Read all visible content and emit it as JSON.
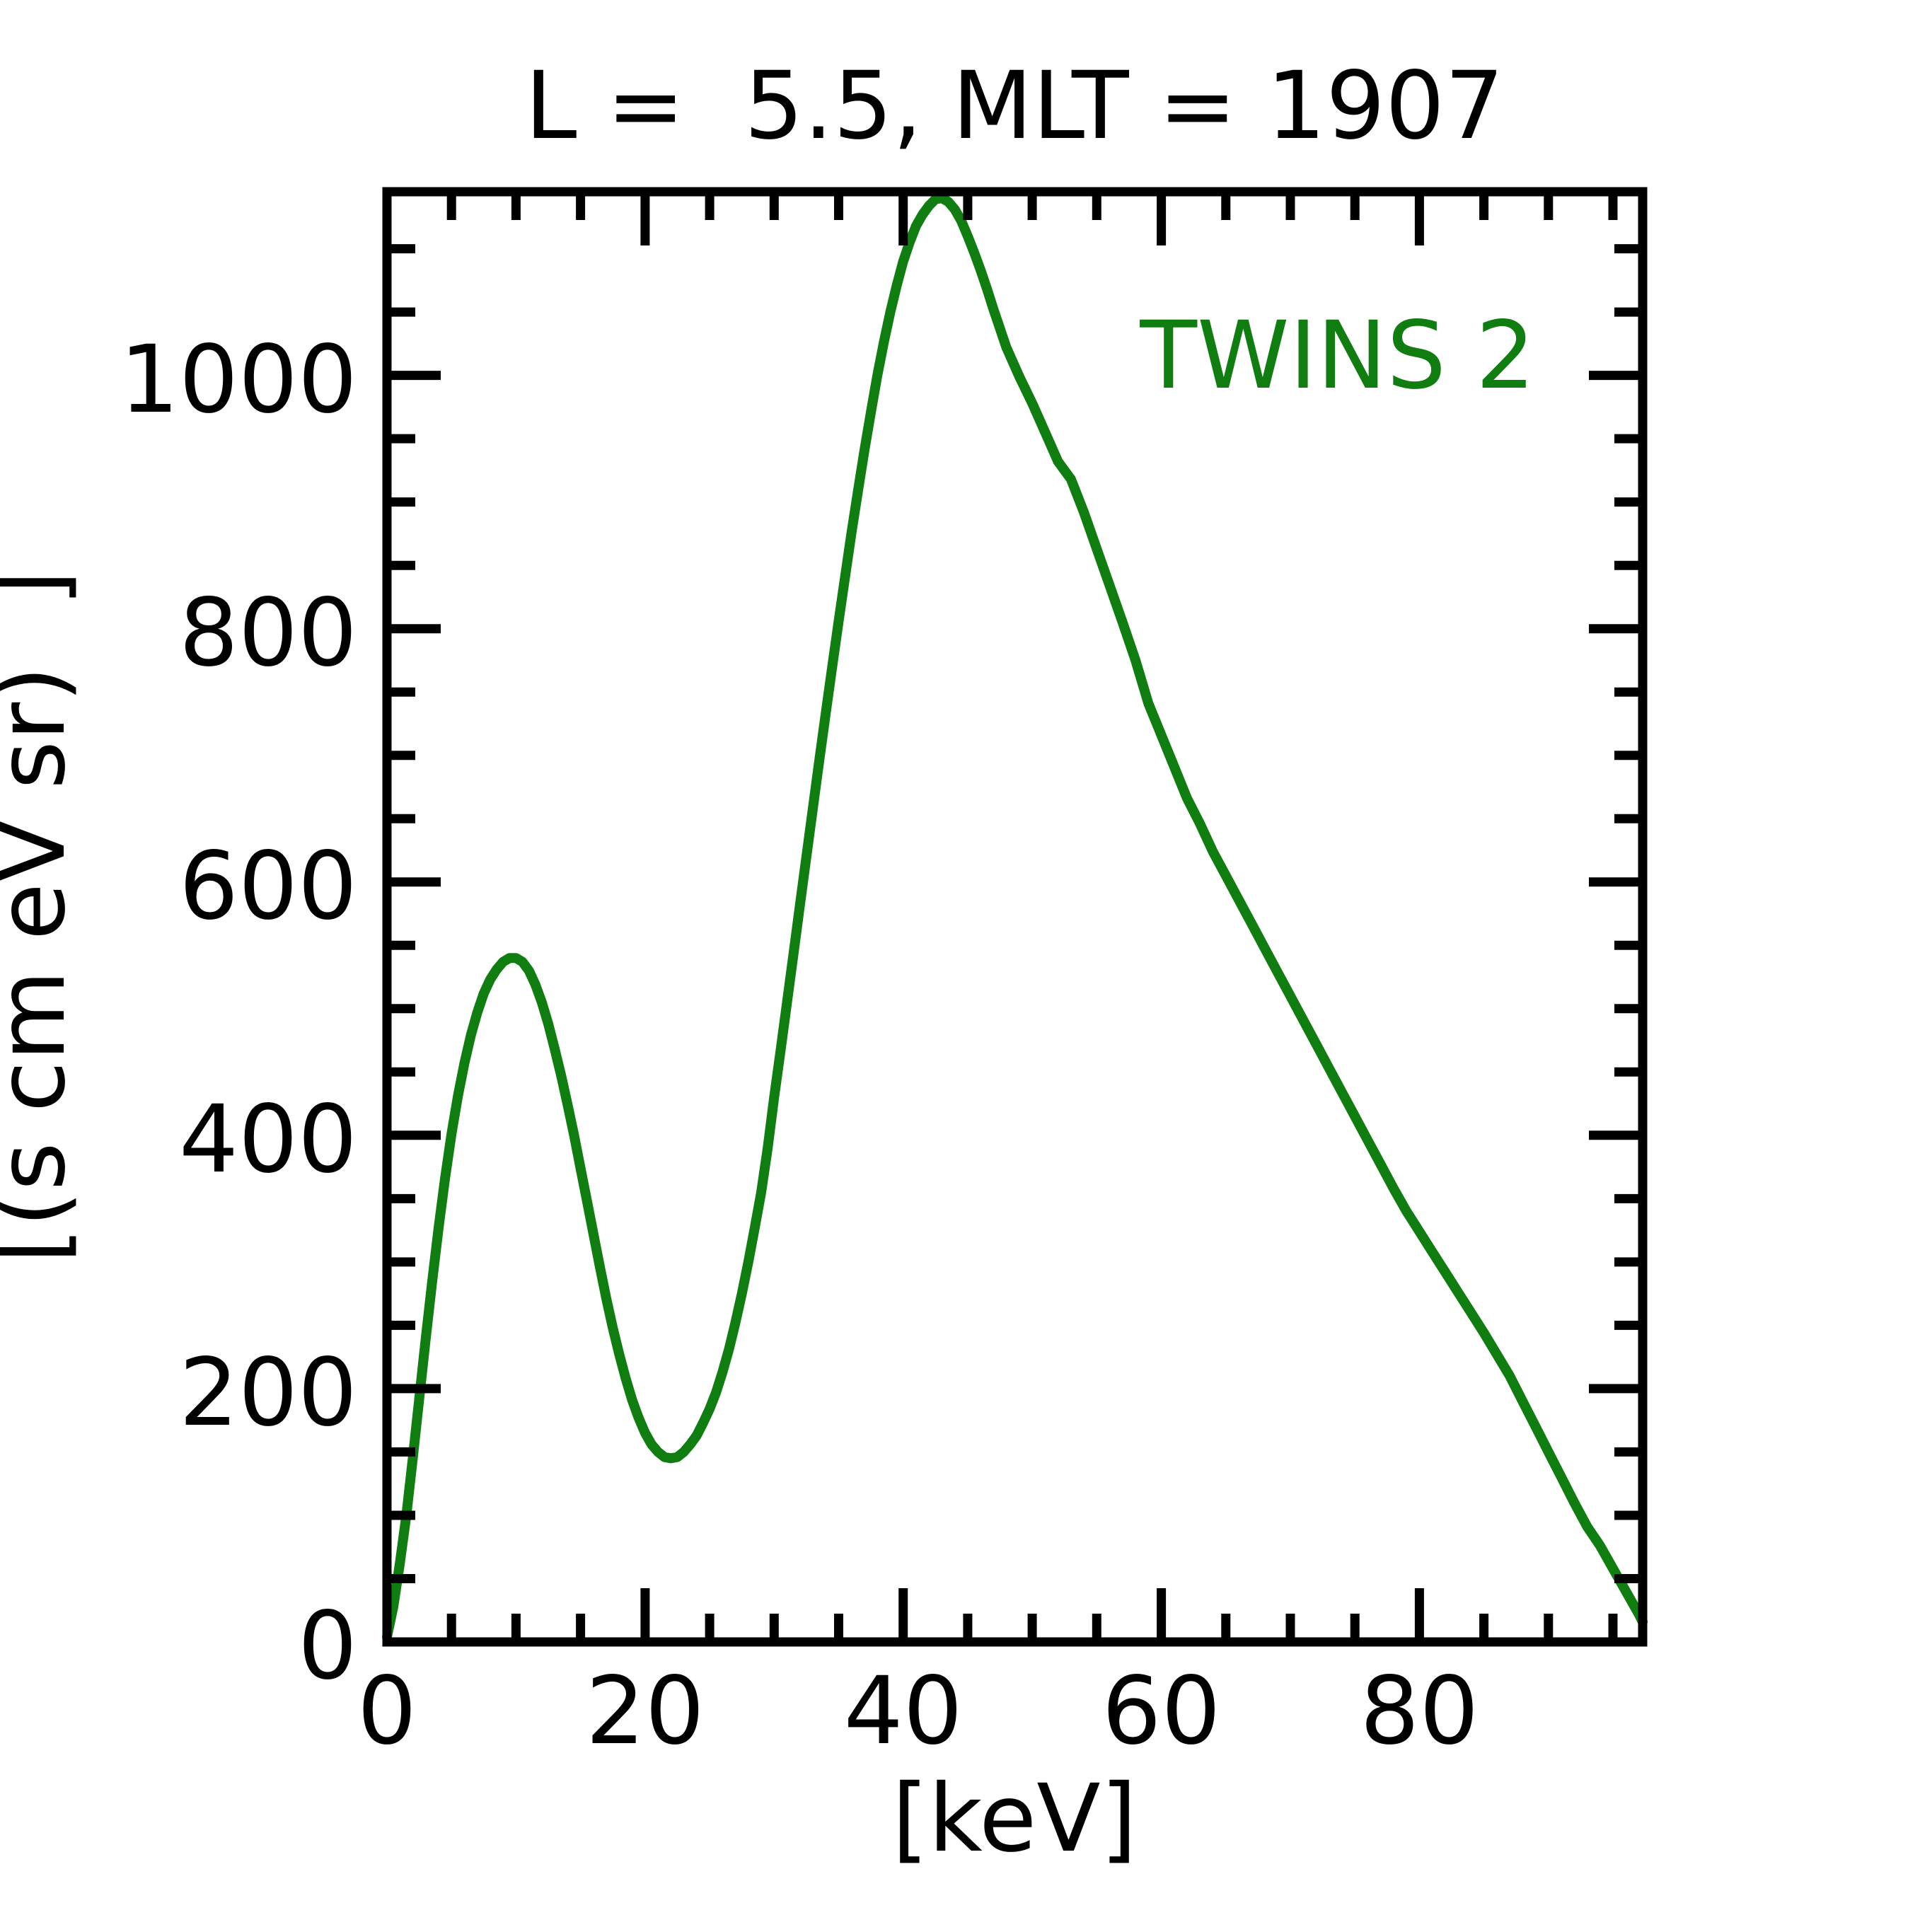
{
  "chart_data": {
    "type": "line",
    "title": "L =  5.5, MLT = 1907",
    "xlabel": "[keV]",
    "ylabel": "[(s cm eV sr)  ]",
    "xlim": [
      0,
      97.3
    ],
    "ylim": [
      0,
      1145
    ],
    "grid": false,
    "legend_position": "upper right",
    "axis_color": "#000000",
    "x_tick_labels": [
      "0",
      "20",
      "40",
      "60",
      "80"
    ],
    "x_major_ticks": [
      0,
      20,
      40,
      60,
      80
    ],
    "x_minor_ticks": [
      5,
      10,
      15,
      25,
      30,
      35,
      45,
      50,
      55,
      65,
      70,
      75,
      85,
      90,
      95
    ],
    "y_tick_labels": [
      "0",
      "200",
      "400",
      "600",
      "800",
      "1000"
    ],
    "y_major_ticks": [
      0,
      200,
      400,
      600,
      800,
      1000
    ],
    "y_minor_ticks": [
      50,
      100,
      150,
      250,
      300,
      350,
      450,
      500,
      550,
      650,
      700,
      750,
      850,
      900,
      950,
      1050,
      1100
    ],
    "series": [
      {
        "name": "TWINS 2",
        "color": "#0f7d0f",
        "points": [
          [
            0,
            4
          ],
          [
            0.5,
            28
          ],
          [
            1,
            62
          ],
          [
            1.5,
            100
          ],
          [
            2,
            145
          ],
          [
            2.5,
            192
          ],
          [
            3,
            239
          ],
          [
            3.5,
            284
          ],
          [
            4,
            327
          ],
          [
            4.5,
            366
          ],
          [
            5,
            401
          ],
          [
            5.5,
            431
          ],
          [
            6,
            457
          ],
          [
            6.5,
            479
          ],
          [
            7,
            497
          ],
          [
            7.5,
            512
          ],
          [
            8,
            523
          ],
          [
            8.5,
            531
          ],
          [
            9,
            537
          ],
          [
            9.5,
            540
          ],
          [
            10,
            540
          ],
          [
            10.5,
            537
          ],
          [
            11,
            530
          ],
          [
            11.5,
            519
          ],
          [
            12,
            505
          ],
          [
            12.5,
            488
          ],
          [
            13,
            468
          ],
          [
            13.5,
            447
          ],
          [
            14,
            424
          ],
          [
            14.5,
            400
          ],
          [
            15,
            374
          ],
          [
            15.5,
            348
          ],
          [
            16,
            322
          ],
          [
            16.5,
            296
          ],
          [
            17,
            271
          ],
          [
            17.5,
            248
          ],
          [
            18,
            227
          ],
          [
            18.5,
            208
          ],
          [
            19,
            191
          ],
          [
            19.5,
            177
          ],
          [
            20,
            165
          ],
          [
            20.5,
            156
          ],
          [
            21,
            150
          ],
          [
            21.5,
            146
          ],
          [
            22,
            145
          ],
          [
            22.5,
            146
          ],
          [
            23,
            150
          ],
          [
            23.5,
            156
          ],
          [
            24,
            163
          ],
          [
            24.5,
            173
          ],
          [
            25,
            184
          ],
          [
            25.5,
            197
          ],
          [
            26,
            213
          ],
          [
            26.5,
            231
          ],
          [
            27,
            252
          ],
          [
            27.5,
            275
          ],
          [
            28,
            300
          ],
          [
            28.5,
            327
          ],
          [
            29,
            355
          ],
          [
            29.5,
            390
          ],
          [
            30,
            430
          ],
          [
            30.5,
            467
          ],
          [
            31,
            505
          ],
          [
            31.5,
            543
          ],
          [
            32,
            582
          ],
          [
            32.5,
            620
          ],
          [
            33,
            658
          ],
          [
            33.5,
            696
          ],
          [
            34,
            733
          ],
          [
            34.5,
            770
          ],
          [
            35,
            806
          ],
          [
            35.5,
            841
          ],
          [
            36,
            876
          ],
          [
            36.5,
            909
          ],
          [
            37,
            941
          ],
          [
            37.5,
            971
          ],
          [
            38,
            1000
          ],
          [
            38.5,
            1026
          ],
          [
            39,
            1050
          ],
          [
            39.5,
            1071
          ],
          [
            40,
            1090
          ],
          [
            40.5,
            1105
          ],
          [
            41,
            1118
          ],
          [
            41.5,
            1127
          ],
          [
            42,
            1134
          ],
          [
            42.5,
            1139
          ],
          [
            43,
            1140
          ],
          [
            43.5,
            1137
          ],
          [
            44,
            1131
          ],
          [
            44.5,
            1122
          ],
          [
            45,
            1110
          ],
          [
            45.5,
            1097
          ],
          [
            46,
            1083
          ],
          [
            46.5,
            1068
          ],
          [
            47,
            1052
          ],
          [
            47.5,
            1037
          ],
          [
            48,
            1022
          ],
          [
            49,
            999
          ],
          [
            50,
            978
          ],
          [
            51,
            955
          ],
          [
            52,
            932
          ],
          [
            53,
            918
          ],
          [
            54,
            892
          ],
          [
            55,
            863
          ],
          [
            56,
            834
          ],
          [
            57,
            805
          ],
          [
            58,
            775
          ],
          [
            59,
            741
          ],
          [
            60,
            716
          ],
          [
            61,
            691
          ],
          [
            62,
            666
          ],
          [
            63,
            646
          ],
          [
            64,
            624
          ],
          [
            65,
            605
          ],
          [
            66,
            586
          ],
          [
            67,
            567
          ],
          [
            68,
            548
          ],
          [
            69,
            529
          ],
          [
            70,
            510
          ],
          [
            71,
            491
          ],
          [
            72,
            472
          ],
          [
            73,
            453
          ],
          [
            74,
            434
          ],
          [
            75,
            415
          ],
          [
            76,
            396
          ],
          [
            77,
            377
          ],
          [
            78,
            358
          ],
          [
            79,
            340
          ],
          [
            80,
            324
          ],
          [
            81,
            308
          ],
          [
            82,
            292
          ],
          [
            83,
            276
          ],
          [
            84,
            260
          ],
          [
            85,
            244
          ],
          [
            86,
            227
          ],
          [
            87,
            210
          ],
          [
            88,
            190
          ],
          [
            89,
            170
          ],
          [
            90,
            150
          ],
          [
            91,
            130
          ],
          [
            92,
            110
          ],
          [
            93,
            91
          ],
          [
            94,
            76
          ],
          [
            95,
            58
          ],
          [
            96,
            40
          ],
          [
            97,
            22
          ],
          [
            97.3,
            16
          ]
        ]
      }
    ],
    "style": {
      "line_width": 14,
      "spine_width": 13,
      "major_tick_length": 76,
      "minor_tick_length": 40,
      "plot_left": 547,
      "plot_top": 271,
      "plot_right": 2322,
      "plot_bottom": 2321
    }
  }
}
